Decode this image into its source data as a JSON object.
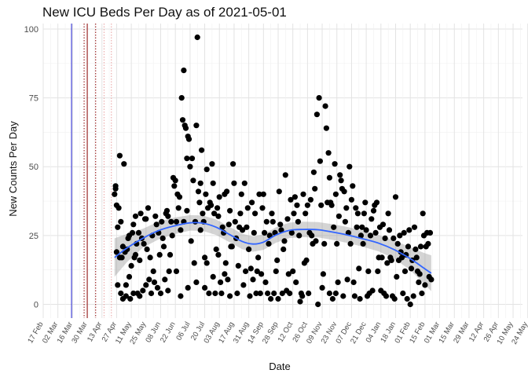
{
  "chart_data": {
    "type": "scatter",
    "title": "New ICU Beds Per Day as of 2021-05-01",
    "xlabel": "Date",
    "ylabel": "New Counts Per Day",
    "x_domain_days": [
      0,
      457
    ],
    "ylim": [
      -5,
      102
    ],
    "y_ticks": [
      0,
      25,
      50,
      75,
      100
    ],
    "x_tick_labels": [
      "17 Feb",
      "02 Mar",
      "16 Mar",
      "30 Mar",
      "13 Apr",
      "27 Apr",
      "11 May",
      "25 May",
      "08 Jun",
      "22 Jun",
      "06 Jul",
      "20 Jul",
      "03 Aug",
      "17 Aug",
      "31 Aug",
      "14 Sep",
      "28 Sep",
      "12 Oct",
      "26 Oct",
      "09 Nov",
      "23 Nov",
      "07 Dec",
      "21 Dec",
      "04 Jan",
      "18 Jan",
      "01 Feb",
      "15 Feb",
      "01 Mar",
      "15 Mar",
      "29 Mar",
      "12 Apr",
      "26 Apr",
      "10 May",
      "24 May"
    ],
    "x_tick_step_days": 14,
    "vlines": [
      {
        "day": 27,
        "color": "#1f1fd1",
        "style": "solid"
      },
      {
        "day": 39,
        "color": "#8b0000",
        "style": "dotted"
      },
      {
        "day": 42,
        "color": "#8b0000",
        "style": "solid"
      },
      {
        "day": 50,
        "color": "#8b0000",
        "style": "dotted"
      },
      {
        "day": 58,
        "color": "#e8a0a0",
        "style": "dotted"
      },
      {
        "day": 65,
        "color": "#e8a0a0",
        "style": "dotted"
      }
    ],
    "points": [
      [
        68,
        40
      ],
      [
        69,
        42
      ],
      [
        69,
        43
      ],
      [
        70,
        36
      ],
      [
        70,
        19
      ],
      [
        71,
        28
      ],
      [
        71,
        7
      ],
      [
        72,
        35
      ],
      [
        73,
        54
      ],
      [
        73,
        17
      ],
      [
        74,
        30
      ],
      [
        74,
        4
      ],
      [
        75,
        17
      ],
      [
        76,
        21
      ],
      [
        76,
        2
      ],
      [
        77,
        51
      ],
      [
        78,
        19
      ],
      [
        79,
        7
      ],
      [
        79,
        3
      ],
      [
        80,
        20
      ],
      [
        81,
        24
      ],
      [
        82,
        25
      ],
      [
        82,
        10
      ],
      [
        83,
        2
      ],
      [
        84,
        14
      ],
      [
        85,
        26
      ],
      [
        86,
        29
      ],
      [
        86,
        4
      ],
      [
        87,
        17
      ],
      [
        88,
        18
      ],
      [
        88,
        32
      ],
      [
        89,
        22
      ],
      [
        90,
        4
      ],
      [
        91,
        26
      ],
      [
        92,
        16
      ],
      [
        92,
        3
      ],
      [
        93,
        33
      ],
      [
        94,
        24
      ],
      [
        95,
        5
      ],
      [
        96,
        22
      ],
      [
        97,
        31
      ],
      [
        98,
        7
      ],
      [
        98,
        31
      ],
      [
        99,
        20
      ],
      [
        100,
        35
      ],
      [
        101,
        9
      ],
      [
        102,
        17
      ],
      [
        103,
        4
      ],
      [
        104,
        25
      ],
      [
        105,
        12
      ],
      [
        106,
        8
      ],
      [
        107,
        32
      ],
      [
        108,
        29
      ],
      [
        109,
        6
      ],
      [
        110,
        26
      ],
      [
        111,
        18
      ],
      [
        112,
        4
      ],
      [
        113,
        30
      ],
      [
        114,
        24
      ],
      [
        115,
        21
      ],
      [
        116,
        9
      ],
      [
        117,
        33
      ],
      [
        118,
        34
      ],
      [
        119,
        5
      ],
      [
        119,
        32
      ],
      [
        120,
        12
      ],
      [
        121,
        18
      ],
      [
        122,
        30
      ],
      [
        123,
        25
      ],
      [
        124,
        46
      ],
      [
        125,
        43
      ],
      [
        126,
        45
      ],
      [
        127,
        12
      ],
      [
        127,
        30
      ],
      [
        128,
        40
      ],
      [
        129,
        35
      ],
      [
        130,
        39
      ],
      [
        131,
        3
      ],
      [
        131,
        27
      ],
      [
        132,
        75
      ],
      [
        133,
        67
      ],
      [
        134,
        85
      ],
      [
        134,
        30
      ],
      [
        135,
        65
      ],
      [
        136,
        64
      ],
      [
        137,
        34
      ],
      [
        137,
        53
      ],
      [
        138,
        61
      ],
      [
        138,
        6
      ],
      [
        139,
        60
      ],
      [
        140,
        50
      ],
      [
        141,
        23
      ],
      [
        142,
        53
      ],
      [
        143,
        45
      ],
      [
        144,
        15
      ],
      [
        145,
        30
      ],
      [
        146,
        65
      ],
      [
        146,
        8
      ],
      [
        147,
        97
      ],
      [
        148,
        41
      ],
      [
        149,
        37
      ],
      [
        150,
        27
      ],
      [
        150,
        44
      ],
      [
        151,
        56
      ],
      [
        152,
        33
      ],
      [
        153,
        30
      ],
      [
        154,
        6
      ],
      [
        154,
        17
      ],
      [
        155,
        40
      ],
      [
        156,
        15
      ],
      [
        156,
        49
      ],
      [
        157,
        35
      ],
      [
        158,
        4
      ],
      [
        159,
        37
      ],
      [
        160,
        36
      ],
      [
        161,
        51
      ],
      [
        162,
        44
      ],
      [
        162,
        10
      ],
      [
        163,
        33
      ],
      [
        164,
        4
      ],
      [
        165,
        20
      ],
      [
        166,
        35
      ],
      [
        167,
        18
      ],
      [
        167,
        32
      ],
      [
        168,
        39
      ],
      [
        169,
        8
      ],
      [
        170,
        4
      ],
      [
        171,
        28
      ],
      [
        172,
        26
      ],
      [
        173,
        40
      ],
      [
        173,
        11
      ],
      [
        174,
        15
      ],
      [
        175,
        41
      ],
      [
        176,
        9
      ],
      [
        177,
        29
      ],
      [
        178,
        3
      ],
      [
        178,
        34
      ],
      [
        179,
        21
      ],
      [
        180,
        21
      ],
      [
        181,
        51
      ],
      [
        182,
        44
      ],
      [
        183,
        30
      ],
      [
        184,
        24
      ],
      [
        185,
        4
      ],
      [
        186,
        14
      ],
      [
        187,
        28
      ],
      [
        188,
        33
      ],
      [
        189,
        40
      ],
      [
        190,
        27
      ],
      [
        191,
        7
      ],
      [
        192,
        44
      ],
      [
        193,
        12
      ],
      [
        194,
        28
      ],
      [
        195,
        35
      ],
      [
        196,
        20
      ],
      [
        197,
        3
      ],
      [
        198,
        13
      ],
      [
        199,
        37
      ],
      [
        200,
        9
      ],
      [
        201,
        26
      ],
      [
        202,
        33
      ],
      [
        203,
        4
      ],
      [
        204,
        12
      ],
      [
        205,
        17
      ],
      [
        206,
        40
      ],
      [
        207,
        4
      ],
      [
        208,
        11
      ],
      [
        209,
        35
      ],
      [
        210,
        40
      ],
      [
        211,
        26
      ],
      [
        212,
        8
      ],
      [
        213,
        30
      ],
      [
        214,
        4
      ],
      [
        215,
        22
      ],
      [
        216,
        25
      ],
      [
        217,
        2
      ],
      [
        218,
        33
      ],
      [
        219,
        30
      ],
      [
        220,
        4
      ],
      [
        221,
        26
      ],
      [
        222,
        12
      ],
      [
        223,
        16
      ],
      [
        224,
        2
      ],
      [
        225,
        41
      ],
      [
        226,
        29
      ],
      [
        227,
        27
      ],
      [
        228,
        4
      ],
      [
        229,
        20
      ],
      [
        230,
        23
      ],
      [
        231,
        47
      ],
      [
        232,
        5
      ],
      [
        233,
        31
      ],
      [
        234,
        11
      ],
      [
        235,
        4
      ],
      [
        236,
        38
      ],
      [
        237,
        26
      ],
      [
        238,
        12
      ],
      [
        239,
        33
      ],
      [
        240,
        39
      ],
      [
        241,
        8
      ],
      [
        242,
        36
      ],
      [
        243,
        30
      ],
      [
        244,
        25
      ],
      [
        245,
        1
      ],
      [
        246,
        4
      ],
      [
        247,
        3
      ],
      [
        248,
        40
      ],
      [
        249,
        15
      ],
      [
        250,
        33
      ],
      [
        251,
        16
      ],
      [
        252,
        36
      ],
      [
        253,
        4
      ],
      [
        254,
        26
      ],
      [
        255,
        38
      ],
      [
        256,
        25
      ],
      [
        257,
        22
      ],
      [
        258,
        48
      ],
      [
        259,
        42
      ],
      [
        260,
        23
      ],
      [
        261,
        69
      ],
      [
        262,
        0
      ],
      [
        263,
        75
      ],
      [
        264,
        52
      ],
      [
        265,
        36
      ],
      [
        266,
        6
      ],
      [
        267,
        11
      ],
      [
        268,
        22
      ],
      [
        269,
        72
      ],
      [
        270,
        64
      ],
      [
        271,
        37
      ],
      [
        272,
        55
      ],
      [
        273,
        4
      ],
      [
        273,
        46
      ],
      [
        274,
        37
      ],
      [
        275,
        36
      ],
      [
        276,
        2
      ],
      [
        277,
        28
      ],
      [
        278,
        51
      ],
      [
        279,
        4
      ],
      [
        279,
        40
      ],
      [
        280,
        22
      ],
      [
        281,
        8
      ],
      [
        282,
        32
      ],
      [
        283,
        47
      ],
      [
        284,
        45
      ],
      [
        285,
        42
      ],
      [
        286,
        3
      ],
      [
        287,
        41
      ],
      [
        288,
        30
      ],
      [
        289,
        35
      ],
      [
        290,
        9
      ],
      [
        291,
        26
      ],
      [
        292,
        50
      ],
      [
        293,
        22
      ],
      [
        294,
        38
      ],
      [
        295,
        43
      ],
      [
        296,
        8
      ],
      [
        297,
        3
      ],
      [
        298,
        35
      ],
      [
        299,
        28
      ],
      [
        300,
        33
      ],
      [
        301,
        13
      ],
      [
        302,
        2
      ],
      [
        303,
        25
      ],
      [
        304,
        28
      ],
      [
        305,
        22
      ],
      [
        306,
        33
      ],
      [
        307,
        37
      ],
      [
        308,
        27
      ],
      [
        309,
        3
      ],
      [
        310,
        12
      ],
      [
        311,
        4
      ],
      [
        312,
        25
      ],
      [
        313,
        31
      ],
      [
        314,
        5
      ],
      [
        315,
        34
      ],
      [
        316,
        36
      ],
      [
        317,
        26
      ],
      [
        318,
        37
      ],
      [
        319,
        12
      ],
      [
        320,
        17
      ],
      [
        321,
        28
      ],
      [
        322,
        5
      ],
      [
        323,
        17
      ],
      [
        324,
        29
      ],
      [
        325,
        4
      ],
      [
        326,
        24
      ],
      [
        327,
        3
      ],
      [
        328,
        15
      ],
      [
        329,
        33
      ],
      [
        330,
        27
      ],
      [
        331,
        17
      ],
      [
        332,
        16
      ],
      [
        333,
        3
      ],
      [
        334,
        24
      ],
      [
        335,
        2
      ],
      [
        336,
        39
      ],
      [
        337,
        10
      ],
      [
        338,
        22
      ],
      [
        339,
        16
      ],
      [
        340,
        25
      ],
      [
        341,
        19
      ],
      [
        342,
        17
      ],
      [
        343,
        4
      ],
      [
        344,
        26
      ],
      [
        345,
        12
      ],
      [
        346,
        18
      ],
      [
        347,
        2
      ],
      [
        348,
        21
      ],
      [
        349,
        27
      ],
      [
        350,
        0
      ],
      [
        351,
        13
      ],
      [
        352,
        16
      ],
      [
        353,
        3
      ],
      [
        354,
        28
      ],
      [
        355,
        20
      ],
      [
        356,
        17
      ],
      [
        357,
        12
      ],
      [
        358,
        8
      ],
      [
        359,
        11
      ],
      [
        360,
        21
      ],
      [
        361,
        4
      ],
      [
        362,
        33
      ],
      [
        363,
        25
      ],
      [
        364,
        7
      ],
      [
        365,
        21
      ],
      [
        366,
        26
      ],
      [
        367,
        22
      ],
      [
        368,
        10
      ],
      [
        369,
        26
      ],
      [
        370,
        9
      ]
    ],
    "trend": {
      "color": "#3366ff",
      "band_color": "#999999",
      "points": [
        [
          68,
          17
        ],
        [
          80,
          20.5
        ],
        [
          95,
          24
        ],
        [
          110,
          26.8
        ],
        [
          125,
          28.5
        ],
        [
          140,
          29.6
        ],
        [
          152,
          29.5
        ],
        [
          165,
          28
        ],
        [
          178,
          25.3
        ],
        [
          190,
          22.8
        ],
        [
          200,
          21.9
        ],
        [
          210,
          22.6
        ],
        [
          222,
          25.2
        ],
        [
          235,
          26.9
        ],
        [
          248,
          27.2
        ],
        [
          262,
          27.1
        ],
        [
          275,
          26.3
        ],
        [
          290,
          25.2
        ],
        [
          305,
          23.8
        ],
        [
          320,
          22.2
        ],
        [
          335,
          19.8
        ],
        [
          350,
          16.6
        ],
        [
          362,
          13.4
        ],
        [
          370,
          11.3
        ]
      ],
      "band_width": [
        [
          68,
          7
        ],
        [
          90,
          3.5
        ],
        [
          140,
          2.8
        ],
        [
          200,
          2.8
        ],
        [
          260,
          2.8
        ],
        [
          330,
          3
        ],
        [
          355,
          4.5
        ],
        [
          370,
          6.5
        ]
      ]
    }
  }
}
